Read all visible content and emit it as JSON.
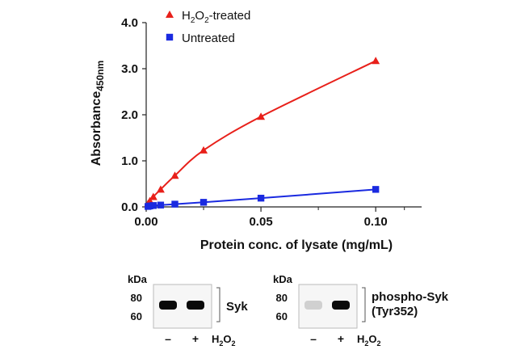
{
  "chart_data": {
    "type": "line",
    "xlabel": "Protein conc. of lysate (mg/mL)",
    "ylabel": "Absorbance",
    "ylabel_sub": "450nm",
    "xlim": [
      0,
      0.12
    ],
    "ylim": [
      0,
      4.0
    ],
    "xticks": [
      0.0,
      0.05,
      0.1
    ],
    "xtick_labels": [
      "0.00",
      "0.05",
      "0.10"
    ],
    "xticks_minor": [
      0.025,
      0.075,
      0.1125
    ],
    "yticks": [
      0.0,
      1.0,
      2.0,
      3.0,
      4.0
    ],
    "ytick_labels": [
      "0.0",
      "1.0",
      "2.0",
      "3.0",
      "4.0"
    ],
    "grid": false,
    "legend": "top-left",
    "series": [
      {
        "name": "H₂O₂-treated",
        "name_parts": [
          "H",
          "2",
          "O",
          "2",
          "-treated"
        ],
        "color": "#e8201a",
        "marker": "triangle",
        "x": [
          0.0008,
          0.0016,
          0.0031,
          0.0063,
          0.0125,
          0.025,
          0.05,
          0.1
        ],
        "y": [
          0.07,
          0.13,
          0.22,
          0.38,
          0.68,
          1.23,
          1.96,
          3.17
        ]
      },
      {
        "name": "Untreated",
        "color": "#1a2ae0",
        "marker": "square",
        "x": [
          0.0008,
          0.0016,
          0.0031,
          0.0063,
          0.0125,
          0.025,
          0.05,
          0.1
        ],
        "y": [
          0.01,
          0.02,
          0.03,
          0.04,
          0.06,
          0.1,
          0.19,
          0.38
        ]
      }
    ]
  },
  "blots": [
    {
      "kda_label": "kDa",
      "markers": [
        "80",
        "60"
      ],
      "protein": "Syk",
      "protein_lines": [
        "Syk"
      ],
      "lanes": [
        "–",
        "+"
      ],
      "treatment_parts": [
        "H",
        "2",
        "O",
        "2"
      ],
      "band_intensity": [
        1.0,
        1.0
      ]
    },
    {
      "kda_label": "kDa",
      "markers": [
        "80",
        "60"
      ],
      "protein": "phospho-Syk (Tyr352)",
      "protein_lines": [
        "phospho-Syk",
        "(Tyr352)"
      ],
      "lanes": [
        "–",
        "+"
      ],
      "treatment_parts": [
        "H",
        "2",
        "O",
        "2"
      ],
      "band_intensity": [
        0.12,
        1.0
      ]
    }
  ]
}
